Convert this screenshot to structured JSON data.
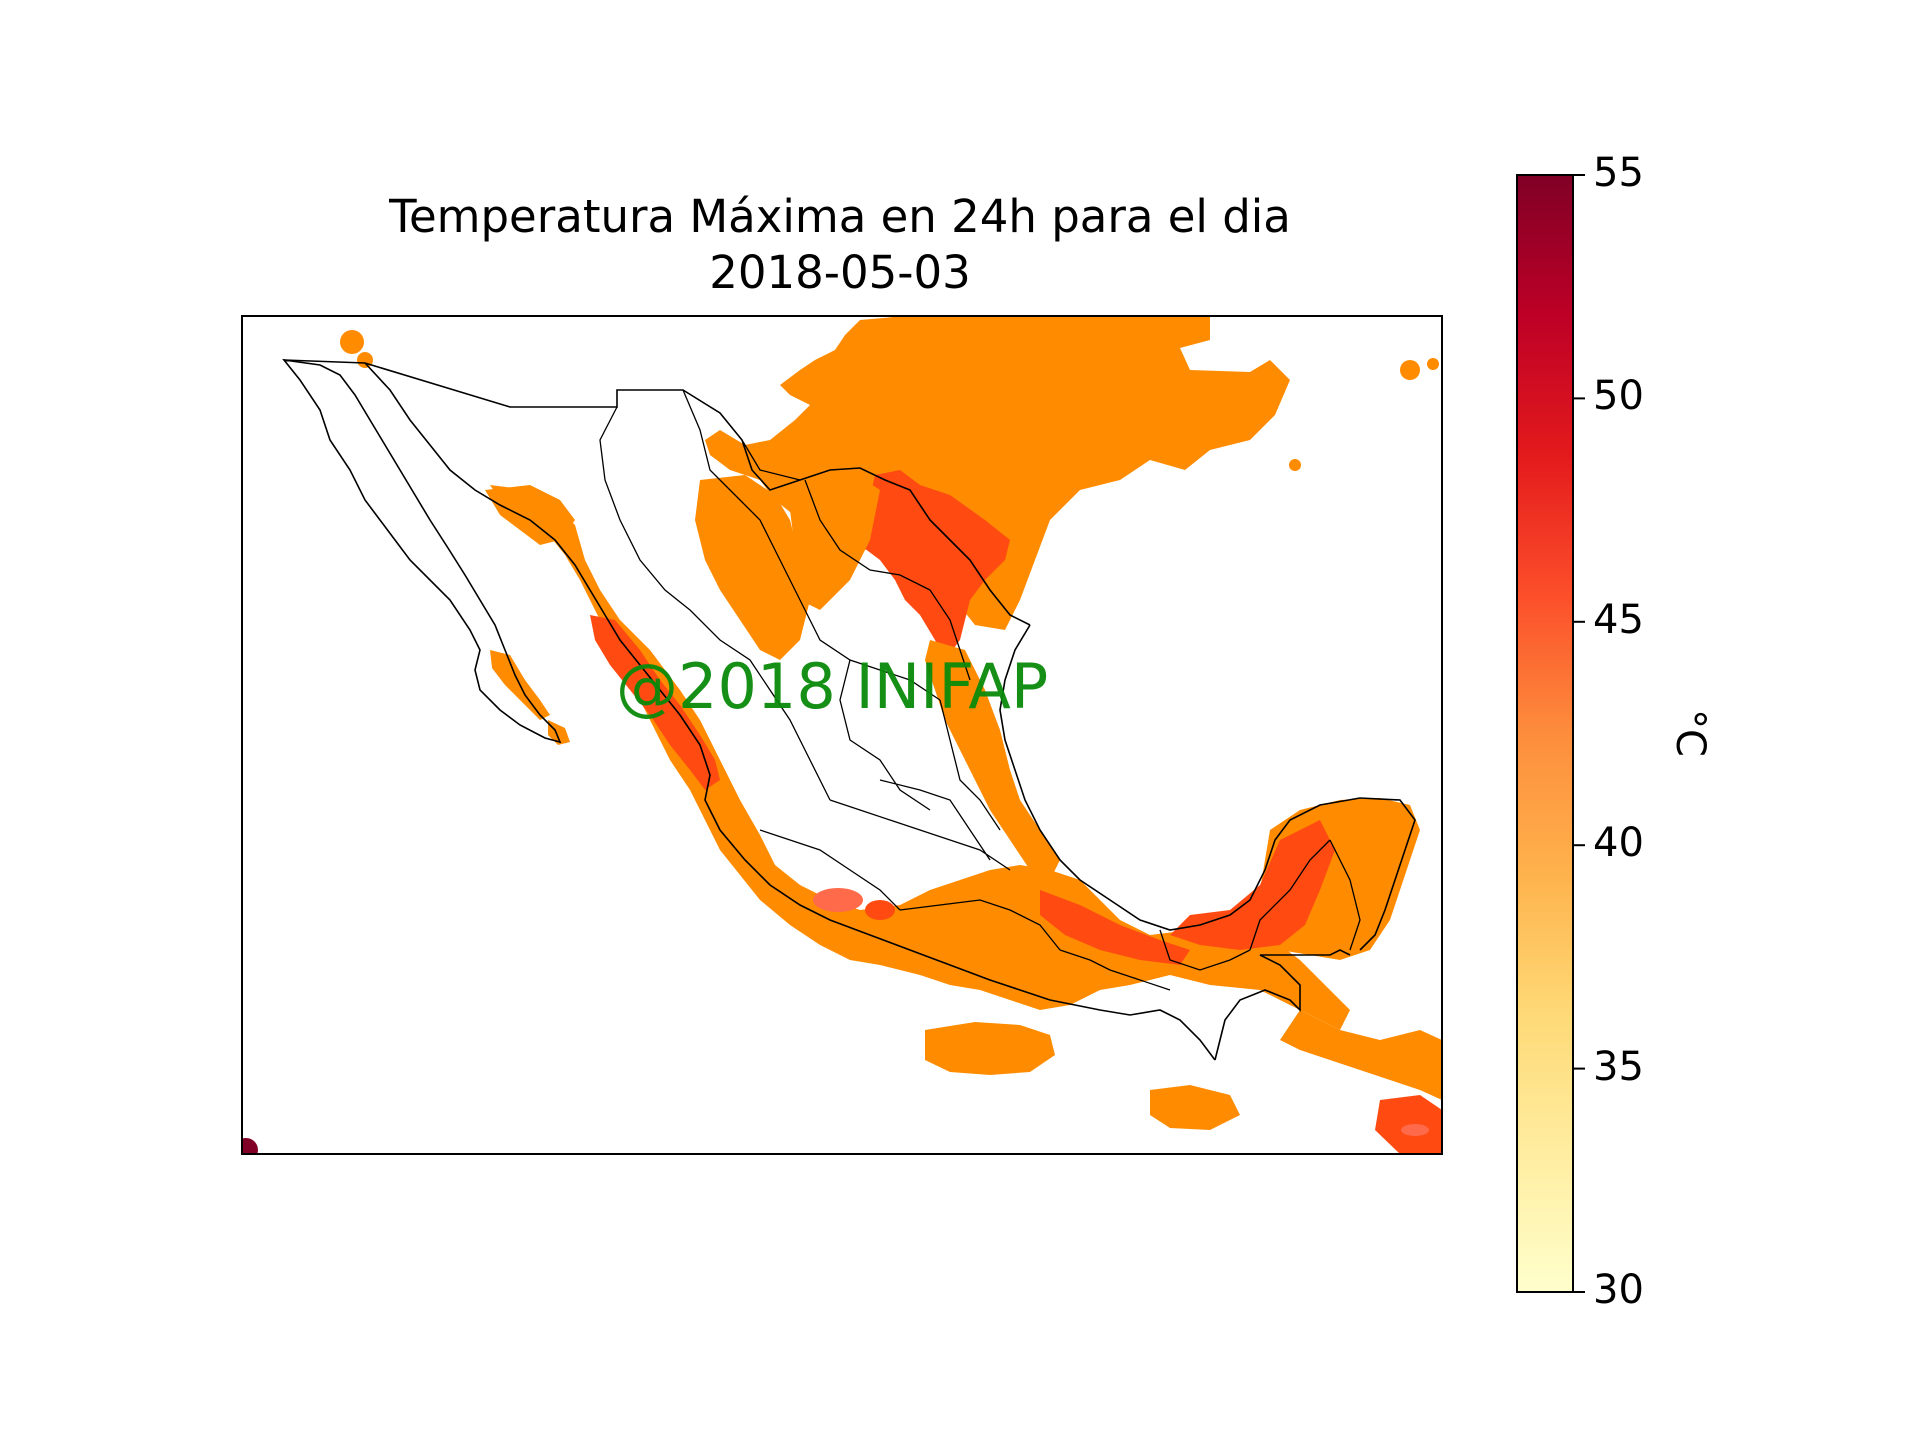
{
  "title": {
    "line1": "Temperatura Máxima en 24h para el dia",
    "line2": "2018-05-03"
  },
  "watermark": "@2018 INIFAP",
  "colorbar": {
    "unit": "°C",
    "min": 30,
    "max": 55,
    "ticks": [
      "30",
      "35",
      "40",
      "45",
      "50",
      "55"
    ],
    "colors": [
      "#ffffcc",
      "#ffeda0",
      "#fed976",
      "#feb24c",
      "#fd8d3c",
      "#fc4e2a",
      "#e31a1c",
      "#bd0026",
      "#800026"
    ]
  },
  "map": {
    "region": "Mexico",
    "fill_colors": {
      "around_40C": "#ff8c00",
      "around_45C": "#ff4b12",
      "hot_spot": "#ff6a4a"
    }
  }
}
